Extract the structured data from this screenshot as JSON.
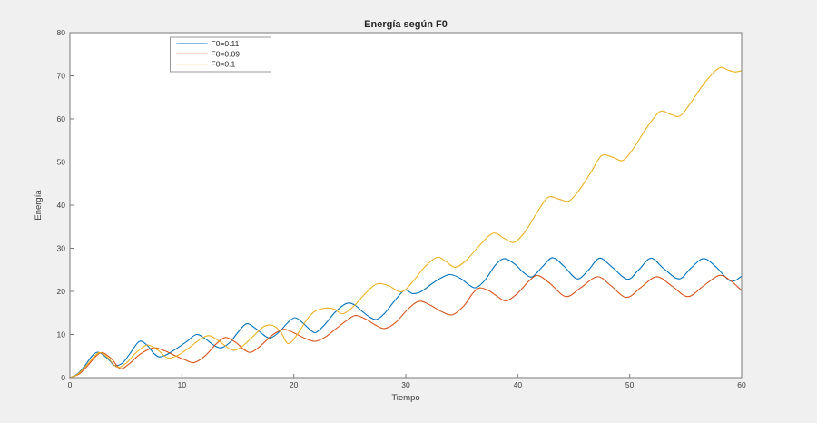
{
  "window": {
    "background": "#f0f0f0"
  },
  "chart_data": {
    "type": "line",
    "title": "Energía según F0",
    "xlabel": "Tiempo",
    "ylabel": "Energía",
    "xlim": [
      0,
      60
    ],
    "ylim": [
      0,
      80
    ],
    "xticks": [
      0,
      10,
      20,
      30,
      40,
      50,
      60
    ],
    "yticks": [
      0,
      10,
      20,
      30,
      40,
      50,
      60,
      70,
      80
    ],
    "grid": false,
    "legend_position": "top-left",
    "plot_background": "#ffffff",
    "axis_color": "#7a7a7a",
    "text_color": "#3c3c3c",
    "legend_border_color": "#999999",
    "series": [
      {
        "name": "F0=0.11",
        "color": "#0072BD",
        "points": [
          [
            0,
            0
          ],
          [
            0.7,
            0.9
          ],
          [
            1.4,
            3.0
          ],
          [
            2.0,
            5.1
          ],
          [
            2.5,
            5.9
          ],
          [
            3.1,
            5.0
          ],
          [
            3.6,
            3.8
          ],
          [
            4.0,
            2.8
          ],
          [
            4.7,
            3.4
          ],
          [
            5.4,
            5.7
          ],
          [
            6.2,
            8.4
          ],
          [
            6.9,
            7.5
          ],
          [
            7.5,
            5.6
          ],
          [
            8.0,
            4.8
          ],
          [
            8.7,
            5.4
          ],
          [
            9.5,
            6.7
          ],
          [
            10.4,
            8.3
          ],
          [
            11.3,
            10.0
          ],
          [
            12.1,
            9.0
          ],
          [
            12.8,
            7.6
          ],
          [
            13.5,
            6.9
          ],
          [
            14.3,
            8.2
          ],
          [
            15.1,
            10.8
          ],
          [
            15.8,
            12.5
          ],
          [
            16.6,
            11.4
          ],
          [
            17.3,
            9.9
          ],
          [
            17.9,
            9.2
          ],
          [
            18.7,
            10.6
          ],
          [
            19.4,
            12.6
          ],
          [
            20.1,
            13.9
          ],
          [
            20.8,
            12.7
          ],
          [
            21.5,
            11.0
          ],
          [
            22.0,
            10.5
          ],
          [
            22.8,
            12.4
          ],
          [
            23.7,
            15.2
          ],
          [
            24.7,
            17.2
          ],
          [
            25.4,
            16.9
          ],
          [
            26.1,
            15.4
          ],
          [
            26.8,
            14.0
          ],
          [
            27.4,
            13.5
          ],
          [
            28.1,
            14.9
          ],
          [
            29.0,
            17.8
          ],
          [
            29.9,
            20.3
          ],
          [
            30.6,
            19.5
          ],
          [
            31.4,
            20.0
          ],
          [
            32.4,
            21.9
          ],
          [
            33.3,
            23.3
          ],
          [
            34.0,
            23.9
          ],
          [
            34.9,
            23.0
          ],
          [
            35.7,
            21.4
          ],
          [
            36.3,
            20.9
          ],
          [
            37.1,
            22.7
          ],
          [
            38.0,
            26.1
          ],
          [
            38.8,
            27.6
          ],
          [
            39.7,
            26.4
          ],
          [
            40.6,
            24.2
          ],
          [
            41.3,
            23.4
          ],
          [
            42.2,
            25.7
          ],
          [
            43.1,
            27.8
          ],
          [
            44.1,
            25.9
          ],
          [
            45.3,
            22.9
          ],
          [
            46.3,
            24.9
          ],
          [
            47.3,
            27.7
          ],
          [
            48.4,
            25.7
          ],
          [
            49.8,
            22.8
          ],
          [
            50.8,
            25.0
          ],
          [
            51.9,
            27.7
          ],
          [
            53.0,
            25.4
          ],
          [
            54.4,
            22.9
          ],
          [
            55.5,
            25.5
          ],
          [
            56.6,
            27.6
          ],
          [
            57.7,
            25.7
          ],
          [
            59.0,
            22.4
          ],
          [
            60,
            23.5
          ]
        ]
      },
      {
        "name": "F0=0.09",
        "color": "#D95319",
        "points": [
          [
            0,
            0
          ],
          [
            0.8,
            0.8
          ],
          [
            1.6,
            2.8
          ],
          [
            2.3,
            4.9
          ],
          [
            2.9,
            5.8
          ],
          [
            3.7,
            4.4
          ],
          [
            4.5,
            2.1
          ],
          [
            5.3,
            3.2
          ],
          [
            6.2,
            5.3
          ],
          [
            7.0,
            6.5
          ],
          [
            7.6,
            6.9
          ],
          [
            8.5,
            6.2
          ],
          [
            9.4,
            5.1
          ],
          [
            10.3,
            4.1
          ],
          [
            11.1,
            3.5
          ],
          [
            12.1,
            5.1
          ],
          [
            13.1,
            7.9
          ],
          [
            13.9,
            9.3
          ],
          [
            14.8,
            8.2
          ],
          [
            15.6,
            6.4
          ],
          [
            16.2,
            5.9
          ],
          [
            17.0,
            7.3
          ],
          [
            18.1,
            9.9
          ],
          [
            19.1,
            11.2
          ],
          [
            20.0,
            10.4
          ],
          [
            21.0,
            9.1
          ],
          [
            21.9,
            8.4
          ],
          [
            22.8,
            9.4
          ],
          [
            23.7,
            11.2
          ],
          [
            24.7,
            13.2
          ],
          [
            25.5,
            14.4
          ],
          [
            26.4,
            13.6
          ],
          [
            27.3,
            12.2
          ],
          [
            28.1,
            11.4
          ],
          [
            29.1,
            12.8
          ],
          [
            30.2,
            15.9
          ],
          [
            31.2,
            17.7
          ],
          [
            32.2,
            16.8
          ],
          [
            33.2,
            15.3
          ],
          [
            34.2,
            14.6
          ],
          [
            35.2,
            16.7
          ],
          [
            36.0,
            19.6
          ],
          [
            36.6,
            20.8
          ],
          [
            37.4,
            20.2
          ],
          [
            38.2,
            18.8
          ],
          [
            39.0,
            17.8
          ],
          [
            40.0,
            19.6
          ],
          [
            41.0,
            22.4
          ],
          [
            41.8,
            23.7
          ],
          [
            42.9,
            21.8
          ],
          [
            44.3,
            18.8
          ],
          [
            45.6,
            20.8
          ],
          [
            47.1,
            23.4
          ],
          [
            48.3,
            21.4
          ],
          [
            49.7,
            18.6
          ],
          [
            51.0,
            20.9
          ],
          [
            52.4,
            23.4
          ],
          [
            53.8,
            21.2
          ],
          [
            55.2,
            18.8
          ],
          [
            56.6,
            21.3
          ],
          [
            58.0,
            23.7
          ],
          [
            59.0,
            22.5
          ],
          [
            60,
            20.2
          ]
        ]
      },
      {
        "name": "F0=0.1",
        "color": "#EDB120",
        "points": [
          [
            0,
            0
          ],
          [
            0.7,
            0.8
          ],
          [
            1.5,
            2.9
          ],
          [
            2.2,
            5.0
          ],
          [
            2.7,
            5.8
          ],
          [
            3.4,
            4.6
          ],
          [
            4.2,
            2.4
          ],
          [
            5.0,
            3.3
          ],
          [
            5.8,
            5.5
          ],
          [
            6.6,
            7.2
          ],
          [
            7.1,
            7.5
          ],
          [
            7.9,
            6.3
          ],
          [
            8.7,
            4.6
          ],
          [
            9.6,
            5.1
          ],
          [
            10.6,
            6.8
          ],
          [
            11.7,
            9.0
          ],
          [
            12.5,
            9.7
          ],
          [
            13.4,
            8.3
          ],
          [
            14.5,
            6.4
          ],
          [
            15.3,
            7.1
          ],
          [
            16.3,
            9.4
          ],
          [
            17.3,
            11.8
          ],
          [
            18.1,
            12.1
          ],
          [
            18.8,
            10.7
          ],
          [
            19.5,
            7.9
          ],
          [
            20.3,
            10.0
          ],
          [
            21.2,
            13.6
          ],
          [
            21.9,
            15.4
          ],
          [
            22.8,
            16.1
          ],
          [
            23.6,
            15.9
          ],
          [
            24.4,
            14.8
          ],
          [
            25.4,
            16.7
          ],
          [
            26.5,
            19.8
          ],
          [
            27.4,
            21.7
          ],
          [
            28.4,
            21.4
          ],
          [
            29.6,
            19.9
          ],
          [
            30.6,
            22.2
          ],
          [
            31.7,
            25.7
          ],
          [
            32.8,
            27.9
          ],
          [
            33.6,
            26.9
          ],
          [
            34.4,
            25.6
          ],
          [
            35.4,
            27.2
          ],
          [
            36.6,
            30.7
          ],
          [
            37.8,
            33.5
          ],
          [
            38.8,
            32.3
          ],
          [
            39.7,
            31.4
          ],
          [
            40.7,
            34.0
          ],
          [
            41.7,
            38.2
          ],
          [
            42.7,
            41.8
          ],
          [
            43.7,
            41.4
          ],
          [
            44.6,
            41.0
          ],
          [
            45.6,
            43.9
          ],
          [
            46.6,
            47.9
          ],
          [
            47.5,
            51.5
          ],
          [
            48.5,
            51.1
          ],
          [
            49.4,
            50.4
          ],
          [
            50.4,
            53.4
          ],
          [
            51.5,
            57.9
          ],
          [
            52.7,
            61.7
          ],
          [
            53.6,
            61.1
          ],
          [
            54.5,
            60.7
          ],
          [
            55.5,
            63.9
          ],
          [
            56.7,
            68.4
          ],
          [
            58.0,
            71.8
          ],
          [
            58.8,
            71.3
          ],
          [
            59.4,
            70.9
          ],
          [
            60,
            71.2
          ]
        ]
      }
    ]
  }
}
